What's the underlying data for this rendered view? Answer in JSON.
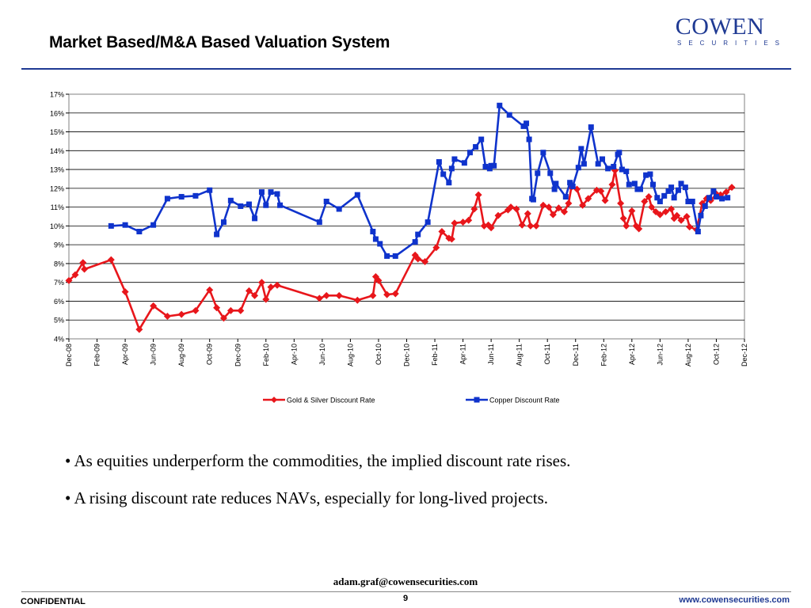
{
  "slide": {
    "title": "Market Based/M&A Based Valuation System",
    "logo_main": "COWEN",
    "logo_sub": "SECURITIES",
    "bullet_symbol": "•",
    "bullets": [
      "As equities underperform the commodities, the implied discount rate rises.",
      "A rising discount rate reduces NAVs, especially for long-lived projects."
    ],
    "email": "adam.graf@cowensecurities.com",
    "page_number": "9",
    "confidential": "CONFIDENTIAL",
    "website": "www.cowensecurities.com"
  },
  "chart_data": {
    "type": "line",
    "title": "",
    "xlabel": "",
    "ylabel": "",
    "ylim": [
      4,
      17
    ],
    "yticks": [
      4,
      5,
      6,
      7,
      8,
      9,
      10,
      11,
      12,
      13,
      14,
      15,
      16,
      17
    ],
    "ytick_labels": [
      "4%",
      "5%",
      "6%",
      "7%",
      "8%",
      "9%",
      "10%",
      "11%",
      "12%",
      "13%",
      "14%",
      "15%",
      "16%",
      "17%"
    ],
    "x_unit": "months since Dec-08",
    "xlim": [
      0,
      48
    ],
    "xtick_labels": [
      "Dec-08",
      "Feb-09",
      "Apr-09",
      "Jun-09",
      "Aug-09",
      "Oct-09",
      "Dec-09",
      "Feb-10",
      "Apr-10",
      "Jun-10",
      "Aug-10",
      "Oct-10",
      "Dec-10",
      "Feb-11",
      "Apr-11",
      "Jun-11",
      "Aug-11",
      "Oct-11",
      "Dec-11",
      "Feb-12",
      "Apr-12",
      "Jun-12",
      "Aug-12",
      "Oct-12",
      "Dec-12"
    ],
    "grid": true,
    "legend": "bottom",
    "series": [
      {
        "name": "Gold & Silver Discount Rate",
        "color": "#e8161b",
        "marker": "diamond",
        "points": [
          [
            0.0,
            7.1
          ],
          [
            0.45,
            7.4
          ],
          [
            1.0,
            8.05
          ],
          [
            1.1,
            7.7
          ],
          [
            3.0,
            8.2
          ],
          [
            4.0,
            6.5
          ],
          [
            5.0,
            4.5
          ],
          [
            6.0,
            5.75
          ],
          [
            7.0,
            5.2
          ],
          [
            8.0,
            5.3
          ],
          [
            9.0,
            5.5
          ],
          [
            10.0,
            6.6
          ],
          [
            10.5,
            5.65
          ],
          [
            11.0,
            5.1
          ],
          [
            11.5,
            5.5
          ],
          [
            12.2,
            5.5
          ],
          [
            12.8,
            6.55
          ],
          [
            13.2,
            6.3
          ],
          [
            13.7,
            7.0
          ],
          [
            14.0,
            6.1
          ],
          [
            14.35,
            6.75
          ],
          [
            14.8,
            6.85
          ],
          [
            17.8,
            6.15
          ],
          [
            18.3,
            6.3
          ],
          [
            19.2,
            6.3
          ],
          [
            20.5,
            6.05
          ],
          [
            21.6,
            6.3
          ],
          [
            21.8,
            7.3
          ],
          [
            22.0,
            7.1
          ],
          [
            22.6,
            6.35
          ],
          [
            23.2,
            6.4
          ],
          [
            24.6,
            8.45
          ],
          [
            24.8,
            8.25
          ],
          [
            25.3,
            8.1
          ],
          [
            26.1,
            8.85
          ],
          [
            26.5,
            9.7
          ],
          [
            27.0,
            9.35
          ],
          [
            27.2,
            9.3
          ],
          [
            27.4,
            10.15
          ],
          [
            28.0,
            10.2
          ],
          [
            28.4,
            10.3
          ],
          [
            28.8,
            10.9
          ],
          [
            29.1,
            11.65
          ],
          [
            29.5,
            10.0
          ],
          [
            29.8,
            10.05
          ],
          [
            30.0,
            9.9
          ],
          [
            30.5,
            10.55
          ],
          [
            31.2,
            10.85
          ],
          [
            31.4,
            11.0
          ],
          [
            31.8,
            10.9
          ],
          [
            32.2,
            10.05
          ],
          [
            32.6,
            10.65
          ],
          [
            32.8,
            10.0
          ],
          [
            33.2,
            10.0
          ],
          [
            33.7,
            11.1
          ],
          [
            34.1,
            11.0
          ],
          [
            34.4,
            10.6
          ],
          [
            34.8,
            10.95
          ],
          [
            35.2,
            10.75
          ],
          [
            35.5,
            11.2
          ],
          [
            35.7,
            12.05
          ],
          [
            36.1,
            11.95
          ],
          [
            36.5,
            11.1
          ],
          [
            36.9,
            11.45
          ],
          [
            37.5,
            11.9
          ],
          [
            37.8,
            11.85
          ],
          [
            38.1,
            11.35
          ],
          [
            38.6,
            12.2
          ],
          [
            38.8,
            12.95
          ],
          [
            39.2,
            11.2
          ],
          [
            39.4,
            10.4
          ],
          [
            39.6,
            10.0
          ],
          [
            40.0,
            10.8
          ],
          [
            40.3,
            10.0
          ],
          [
            40.5,
            9.85
          ],
          [
            40.9,
            11.3
          ],
          [
            41.2,
            11.55
          ],
          [
            41.4,
            11.0
          ],
          [
            41.7,
            10.75
          ],
          [
            42.0,
            10.6
          ],
          [
            42.4,
            10.75
          ],
          [
            42.8,
            10.9
          ],
          [
            43.0,
            10.4
          ],
          [
            43.2,
            10.55
          ],
          [
            43.5,
            10.3
          ],
          [
            43.9,
            10.5
          ],
          [
            44.1,
            9.95
          ],
          [
            44.6,
            9.8
          ],
          [
            45.0,
            11.2
          ],
          [
            45.3,
            11.45
          ],
          [
            45.6,
            11.35
          ],
          [
            46.0,
            11.7
          ],
          [
            46.3,
            11.65
          ],
          [
            46.7,
            11.8
          ],
          [
            47.1,
            12.05
          ]
        ]
      },
      {
        "name": "Copper Discount Rate",
        "color": "#0f33cc",
        "marker": "square",
        "points": [
          [
            3.0,
            10.0
          ],
          [
            4.0,
            10.05
          ],
          [
            5.0,
            9.7
          ],
          [
            6.0,
            10.05
          ],
          [
            7.0,
            11.45
          ],
          [
            8.0,
            11.55
          ],
          [
            9.0,
            11.6
          ],
          [
            10.0,
            11.9
          ],
          [
            10.5,
            9.55
          ],
          [
            11.0,
            10.2
          ],
          [
            11.5,
            11.35
          ],
          [
            12.2,
            11.05
          ],
          [
            12.8,
            11.15
          ],
          [
            13.2,
            10.4
          ],
          [
            13.7,
            11.8
          ],
          [
            14.0,
            11.1
          ],
          [
            14.35,
            11.8
          ],
          [
            14.8,
            11.7
          ],
          [
            15.0,
            11.1
          ],
          [
            17.8,
            10.2
          ],
          [
            18.3,
            11.3
          ],
          [
            19.2,
            10.9
          ],
          [
            20.5,
            11.65
          ],
          [
            21.6,
            9.7
          ],
          [
            21.8,
            9.3
          ],
          [
            22.1,
            9.05
          ],
          [
            22.6,
            8.4
          ],
          [
            23.2,
            8.4
          ],
          [
            24.6,
            9.15
          ],
          [
            24.8,
            9.55
          ],
          [
            25.5,
            10.2
          ],
          [
            26.3,
            13.4
          ],
          [
            26.6,
            12.75
          ],
          [
            27.0,
            12.3
          ],
          [
            27.2,
            13.05
          ],
          [
            27.4,
            13.55
          ],
          [
            28.1,
            13.35
          ],
          [
            28.5,
            13.9
          ],
          [
            28.9,
            14.2
          ],
          [
            29.3,
            14.6
          ],
          [
            29.6,
            13.15
          ],
          [
            29.9,
            13.05
          ],
          [
            30.0,
            13.2
          ],
          [
            30.2,
            13.2
          ],
          [
            30.6,
            16.4
          ],
          [
            31.3,
            15.9
          ],
          [
            32.3,
            15.3
          ],
          [
            32.5,
            15.45
          ],
          [
            32.7,
            14.6
          ],
          [
            32.9,
            11.45
          ],
          [
            33.0,
            11.4
          ],
          [
            33.3,
            12.8
          ],
          [
            33.7,
            13.9
          ],
          [
            34.2,
            12.8
          ],
          [
            34.5,
            11.95
          ],
          [
            34.6,
            12.25
          ],
          [
            35.3,
            11.55
          ],
          [
            35.6,
            12.3
          ],
          [
            35.8,
            12.1
          ],
          [
            36.2,
            13.1
          ],
          [
            36.4,
            14.1
          ],
          [
            36.6,
            13.3
          ],
          [
            37.1,
            15.25
          ],
          [
            37.6,
            13.3
          ],
          [
            37.9,
            13.55
          ],
          [
            38.3,
            13.05
          ],
          [
            38.7,
            13.15
          ],
          [
            39.0,
            13.8
          ],
          [
            39.1,
            13.9
          ],
          [
            39.3,
            13.0
          ],
          [
            39.6,
            12.9
          ],
          [
            39.8,
            12.2
          ],
          [
            40.2,
            12.25
          ],
          [
            40.4,
            11.95
          ],
          [
            40.6,
            11.95
          ],
          [
            41.0,
            12.7
          ],
          [
            41.3,
            12.75
          ],
          [
            41.5,
            12.2
          ],
          [
            41.8,
            11.5
          ],
          [
            42.0,
            11.3
          ],
          [
            42.3,
            11.6
          ],
          [
            42.6,
            11.85
          ],
          [
            42.8,
            12.05
          ],
          [
            43.0,
            11.5
          ],
          [
            43.3,
            11.9
          ],
          [
            43.5,
            12.25
          ],
          [
            43.8,
            12.05
          ],
          [
            44.0,
            11.3
          ],
          [
            44.3,
            11.3
          ],
          [
            44.7,
            9.7
          ],
          [
            44.9,
            10.55
          ],
          [
            45.2,
            11.05
          ],
          [
            45.5,
            11.5
          ],
          [
            45.8,
            11.85
          ],
          [
            46.0,
            11.55
          ],
          [
            46.4,
            11.45
          ],
          [
            46.8,
            11.5
          ]
        ]
      }
    ]
  }
}
